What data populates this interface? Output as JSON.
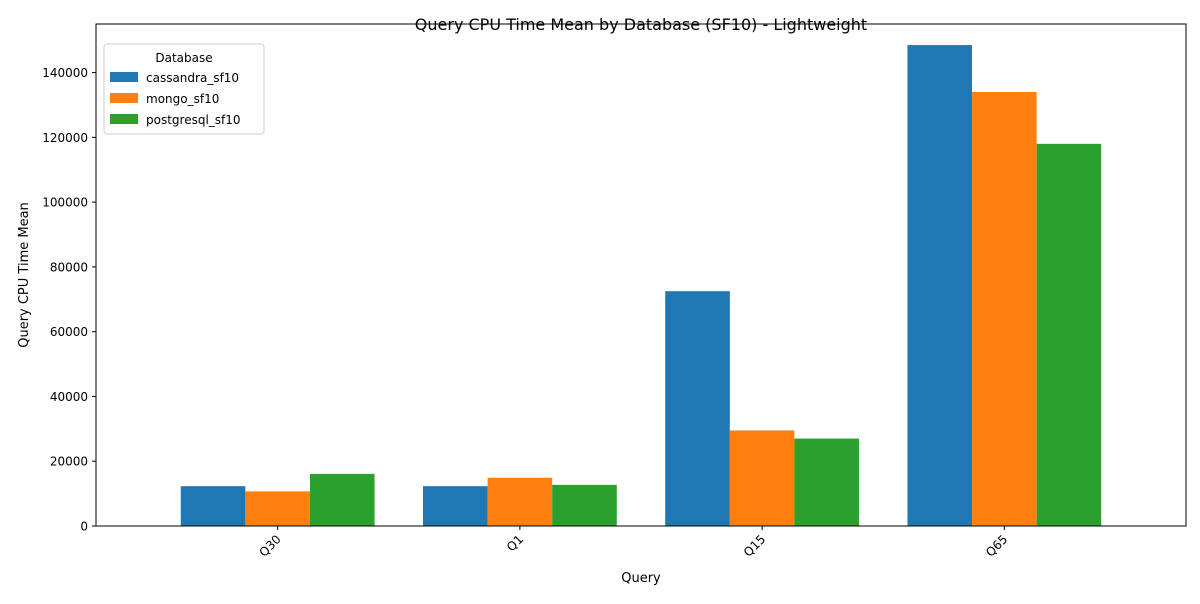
{
  "chart_data": {
    "type": "bar",
    "title": "Query CPU Time Mean by Database (SF10) - Lightweight",
    "xlabel": "Query",
    "ylabel": "Query CPU Time Mean",
    "categories": [
      "Q30",
      "Q1",
      "Q15",
      "Q65"
    ],
    "series": [
      {
        "name": "cassandra_sf10",
        "color": "#1f77b4",
        "values": [
          12300,
          12300,
          72500,
          148500
        ]
      },
      {
        "name": "mongo_sf10",
        "color": "#ff7f0e",
        "values": [
          10700,
          14900,
          29500,
          134000
        ]
      },
      {
        "name": "postgresql_sf10",
        "color": "#2ca02c",
        "values": [
          16100,
          12700,
          27000,
          118000
        ]
      }
    ],
    "ylim": [
      0,
      155000
    ],
    "yticks": [
      0,
      20000,
      40000,
      60000,
      80000,
      100000,
      120000,
      140000
    ],
    "legend": {
      "title": "Database",
      "position": "top-left"
    },
    "grid": false
  }
}
